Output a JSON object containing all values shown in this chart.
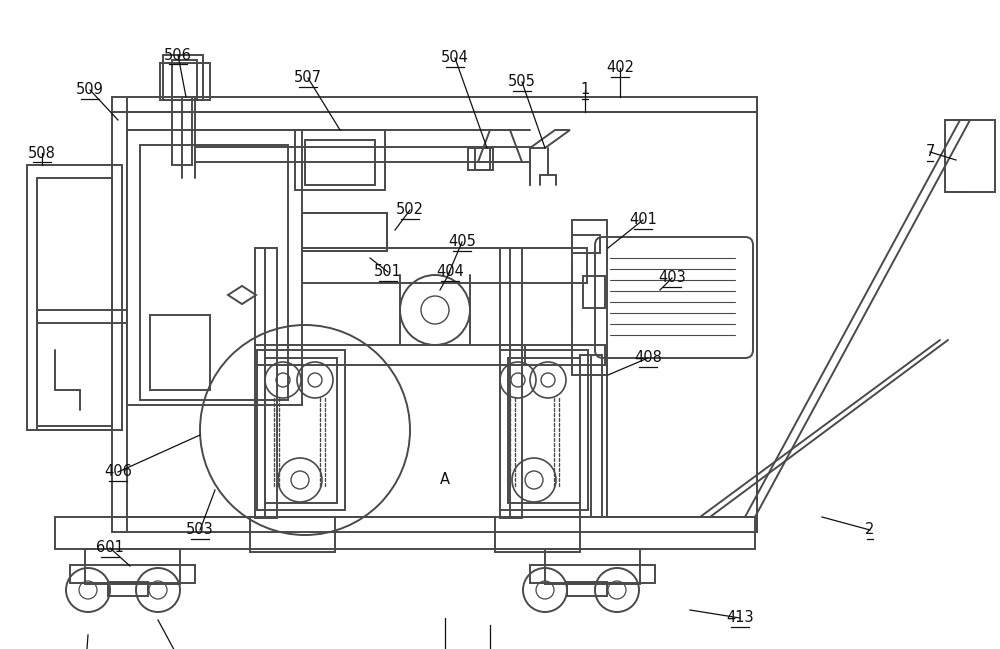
{
  "bg_color": "#ffffff",
  "lc": "#4a4a4a",
  "lw": 1.4,
  "figsize": [
    10.0,
    6.49
  ]
}
